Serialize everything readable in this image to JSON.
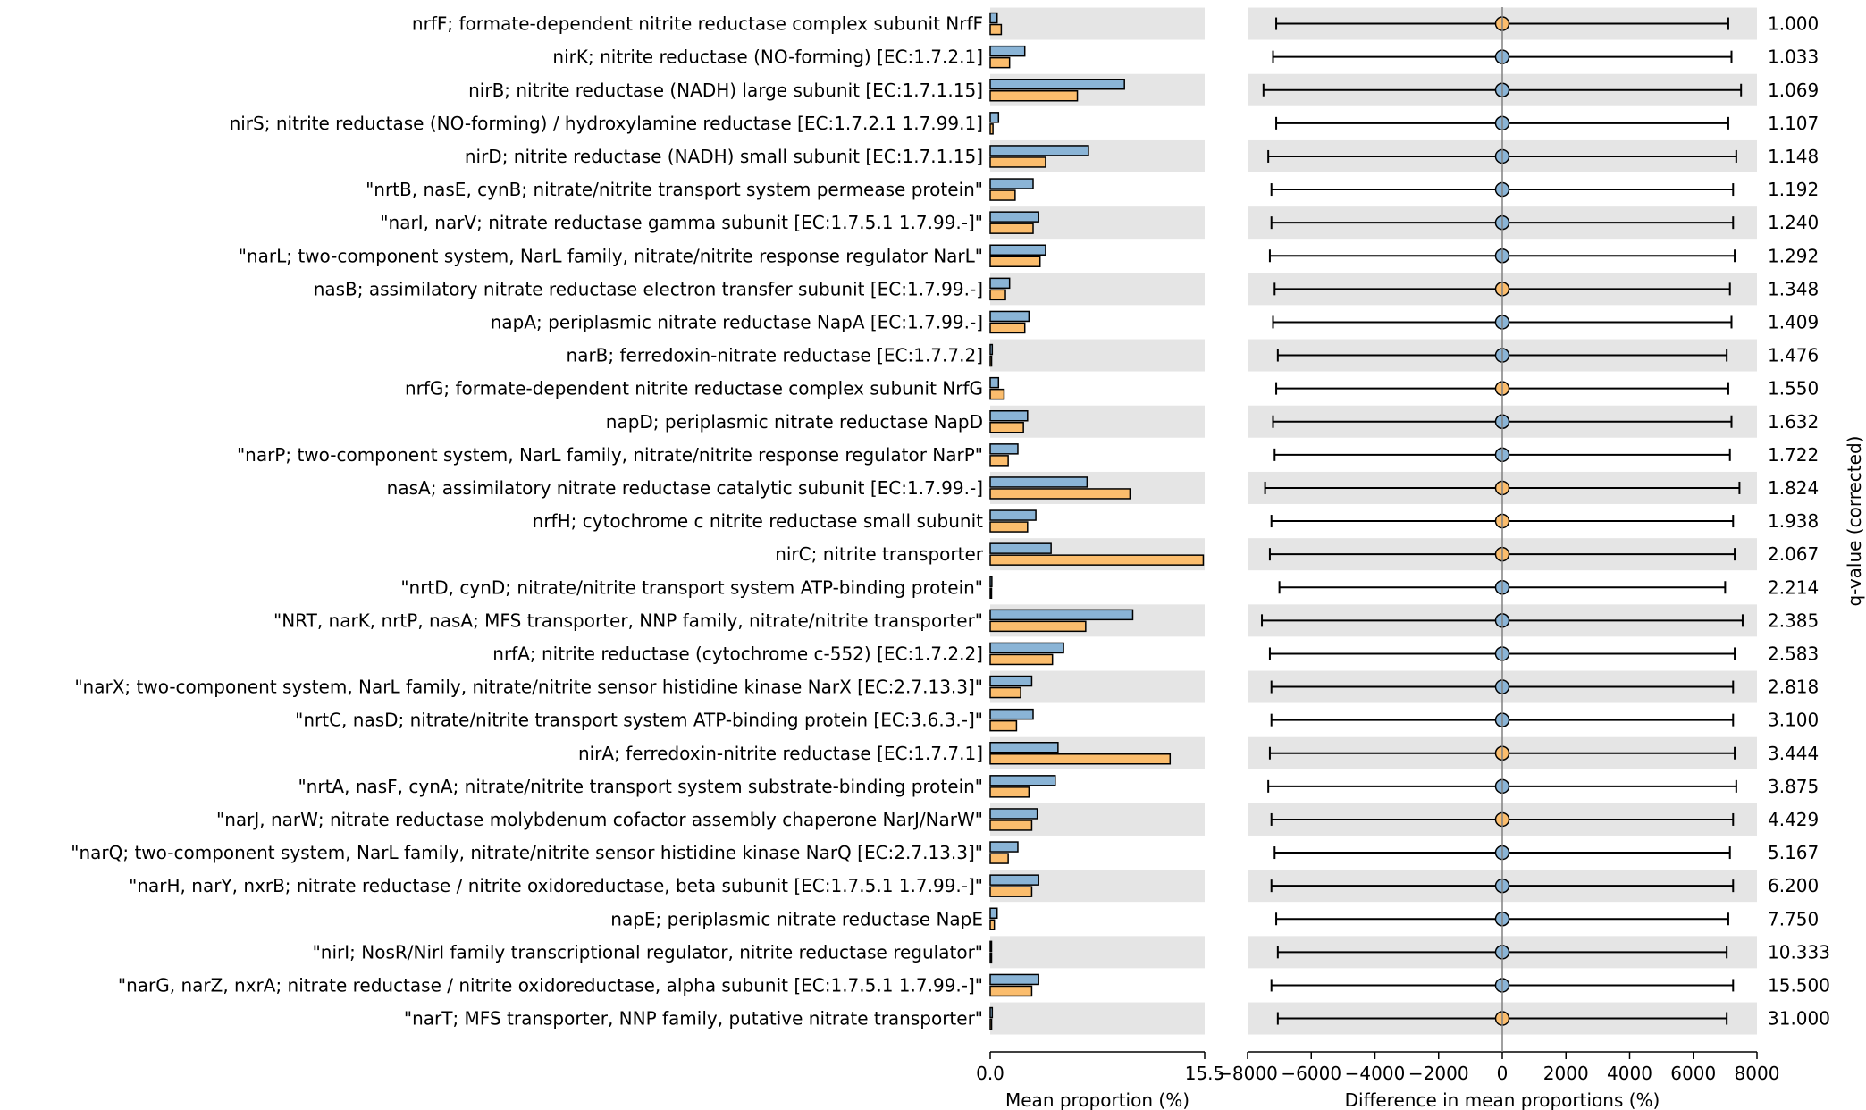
{
  "colors": {
    "blue": "#8ab4d6",
    "orange": "#fbbd6d",
    "stripe": "#e5e5e5",
    "mark_stroke": "#000000"
  },
  "chart_data": [
    {
      "type": "bar",
      "orientation": "horizontal",
      "xlabel": "Mean proportion (%)",
      "xlim": [
        0,
        15.5
      ],
      "xticks": [
        "0.0",
        "15.5"
      ],
      "categories": [
        "nrfF; formate-dependent nitrite reductase complex subunit NrfF",
        "nirK; nitrite reductase (NO-forming) [EC:1.7.2.1]",
        "nirB; nitrite reductase (NADH) large subunit [EC:1.7.1.15]",
        "nirS; nitrite reductase (NO-forming) / hydroxylamine reductase [EC:1.7.2.1 1.7.99.1]",
        "nirD; nitrite reductase (NADH) small subunit [EC:1.7.1.15]",
        "\"nrtB, nasE, cynB; nitrate/nitrite transport system permease protein\"",
        "\"narI, narV; nitrate reductase gamma subunit [EC:1.7.5.1 1.7.99.-]\"",
        "\"narL; two-component system, NarL family, nitrate/nitrite response regulator NarL\"",
        "nasB; assimilatory nitrate reductase electron transfer subunit [EC:1.7.99.-]",
        "napA; periplasmic nitrate reductase NapA [EC:1.7.99.-]",
        "narB; ferredoxin-nitrate reductase [EC:1.7.7.2]",
        "nrfG; formate-dependent nitrite reductase complex subunit NrfG",
        "napD; periplasmic nitrate reductase NapD",
        "\"narP; two-component system, NarL family, nitrate/nitrite response regulator NarP\"",
        "nasA; assimilatory nitrate reductase catalytic subunit [EC:1.7.99.-]",
        "nrfH; cytochrome c nitrite reductase small subunit",
        "nirC; nitrite transporter",
        "\"nrtD, cynD; nitrate/nitrite transport system ATP-binding protein\"",
        "\"NRT, narK, nrtP, nasA; MFS transporter, NNP family, nitrate/nitrite transporter\"",
        "nrfA; nitrite reductase (cytochrome c-552) [EC:1.7.2.2]",
        "\"narX; two-component system, NarL family, nitrate/nitrite sensor histidine kinase NarX [EC:2.7.13.3]\"",
        "\"nrtC, nasD; nitrate/nitrite transport system ATP-binding protein [EC:3.6.3.-]\"",
        "nirA; ferredoxin-nitrite reductase [EC:1.7.7.1]",
        "\"nrtA, nasF, cynA; nitrate/nitrite transport system substrate-binding protein\"",
        "\"narJ, narW; nitrate reductase molybdenum cofactor assembly chaperone NarJ/NarW\"",
        "\"narQ; two-component system, NarL family, nitrate/nitrite sensor histidine kinase NarQ [EC:2.7.13.3]\"",
        "\"narH, narY, nxrB; nitrate reductase / nitrite oxidoreductase, beta subunit [EC:1.7.5.1 1.7.99.-]\"",
        "napE; periplasmic nitrate reductase NapE",
        "\"nirI; NosR/NirI family transcriptional regulator, nitrite reductase regulator\"",
        "\"narG, narZ, nxrA; nitrate reductase / nitrite oxidoreductase, alpha subunit [EC:1.7.5.1 1.7.99.-]\"",
        "\"narT; MFS transporter, NNP family, putative nitrate transporter\""
      ],
      "series": [
        {
          "color": "#8ab4d6",
          "values": [
            0.5,
            2.5,
            9.7,
            0.6,
            7.1,
            3.1,
            3.5,
            4.0,
            1.4,
            2.8,
            0.15,
            0.6,
            2.7,
            2.0,
            7.0,
            3.3,
            4.4,
            0.12,
            10.3,
            5.3,
            3.0,
            3.1,
            4.9,
            4.7,
            3.4,
            2.0,
            3.5,
            0.5,
            0.08,
            3.5,
            0.15
          ]
        },
        {
          "color": "#fbbd6d",
          "values": [
            0.8,
            1.4,
            6.3,
            0.2,
            4.0,
            1.8,
            3.1,
            3.6,
            1.1,
            2.5,
            0.1,
            1.0,
            2.4,
            1.3,
            10.1,
            2.7,
            15.4,
            0.05,
            6.9,
            4.5,
            2.2,
            1.9,
            13.0,
            2.8,
            3.0,
            1.3,
            3.0,
            0.3,
            0.04,
            3.0,
            0.1
          ]
        }
      ]
    },
    {
      "type": "scatter",
      "subtype": "point-with-error-bars",
      "xlabel": "Difference in mean proportions (%)",
      "xlim": [
        -8000,
        8000
      ],
      "xticks": [
        "−8000",
        "−6000",
        "−4000",
        "−2000",
        "0",
        "2000",
        "4000",
        "6000",
        "8000"
      ],
      "x": [
        0,
        0,
        0,
        0,
        0,
        0,
        0,
        0,
        0,
        0,
        0,
        0,
        0,
        0,
        0,
        0,
        0,
        0,
        0,
        0,
        0,
        0,
        0,
        0,
        0,
        0,
        0,
        0,
        0,
        0,
        0
      ],
      "ci_low": [
        -7100,
        -7200,
        -7500,
        -7100,
        -7350,
        -7250,
        -7250,
        -7300,
        -7150,
        -7200,
        -7050,
        -7100,
        -7200,
        -7150,
        -7450,
        -7250,
        -7300,
        -7000,
        -7550,
        -7300,
        -7250,
        -7250,
        -7300,
        -7350,
        -7250,
        -7150,
        -7250,
        -7100,
        -7050,
        -7250,
        -7050
      ],
      "ci_high": [
        7100,
        7200,
        7500,
        7100,
        7350,
        7250,
        7250,
        7300,
        7150,
        7200,
        7050,
        7100,
        7200,
        7150,
        7450,
        7250,
        7300,
        7000,
        7550,
        7300,
        7250,
        7250,
        7300,
        7350,
        7250,
        7150,
        7250,
        7100,
        7050,
        7250,
        7050
      ],
      "point_colors": [
        "orange",
        "blue",
        "blue",
        "blue",
        "blue",
        "blue",
        "blue",
        "blue",
        "orange",
        "blue",
        "blue",
        "orange",
        "blue",
        "blue",
        "orange",
        "orange",
        "orange",
        "blue",
        "blue",
        "blue",
        "blue",
        "blue",
        "orange",
        "blue",
        "orange",
        "blue",
        "blue",
        "blue",
        "blue",
        "blue",
        "orange"
      ]
    },
    {
      "type": "table",
      "ylabel": "q-value (corrected)",
      "values": [
        "1.000",
        "1.033",
        "1.069",
        "1.107",
        "1.148",
        "1.192",
        "1.240",
        "1.292",
        "1.348",
        "1.409",
        "1.476",
        "1.550",
        "1.632",
        "1.722",
        "1.824",
        "1.938",
        "2.067",
        "2.214",
        "2.385",
        "2.583",
        "2.818",
        "3.100",
        "3.444",
        "3.875",
        "4.429",
        "5.167",
        "6.200",
        "7.750",
        "10.333",
        "15.500",
        "31.000"
      ]
    }
  ]
}
